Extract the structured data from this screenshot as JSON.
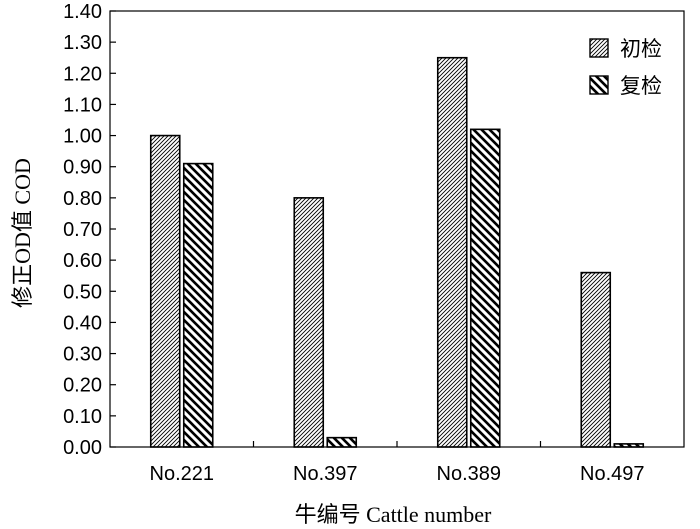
{
  "chart_data": {
    "type": "bar",
    "title": "",
    "xlabel": "牛编号 Cattle number",
    "ylabel": "修正OD值 COD",
    "categories": [
      "No.221",
      "No.397",
      "No.389",
      "No.497"
    ],
    "series": [
      {
        "name": "初检",
        "values": [
          1.0,
          0.8,
          1.25,
          0.56
        ],
        "pattern": "fine-diagonal"
      },
      {
        "name": "复检",
        "values": [
          0.91,
          0.03,
          1.02,
          0.01
        ],
        "pattern": "coarse-diagonal"
      }
    ],
    "ylim": [
      0,
      1.4
    ],
    "yticks": [
      "0.00",
      "0.10",
      "0.20",
      "0.30",
      "0.40",
      "0.50",
      "0.60",
      "0.70",
      "0.80",
      "0.90",
      "1.00",
      "1.10",
      "1.20",
      "1.30",
      "1.40"
    ],
    "grid": false,
    "legend_position": "top-right",
    "colors": {
      "stroke": "#000000",
      "background": "#ffffff"
    }
  }
}
